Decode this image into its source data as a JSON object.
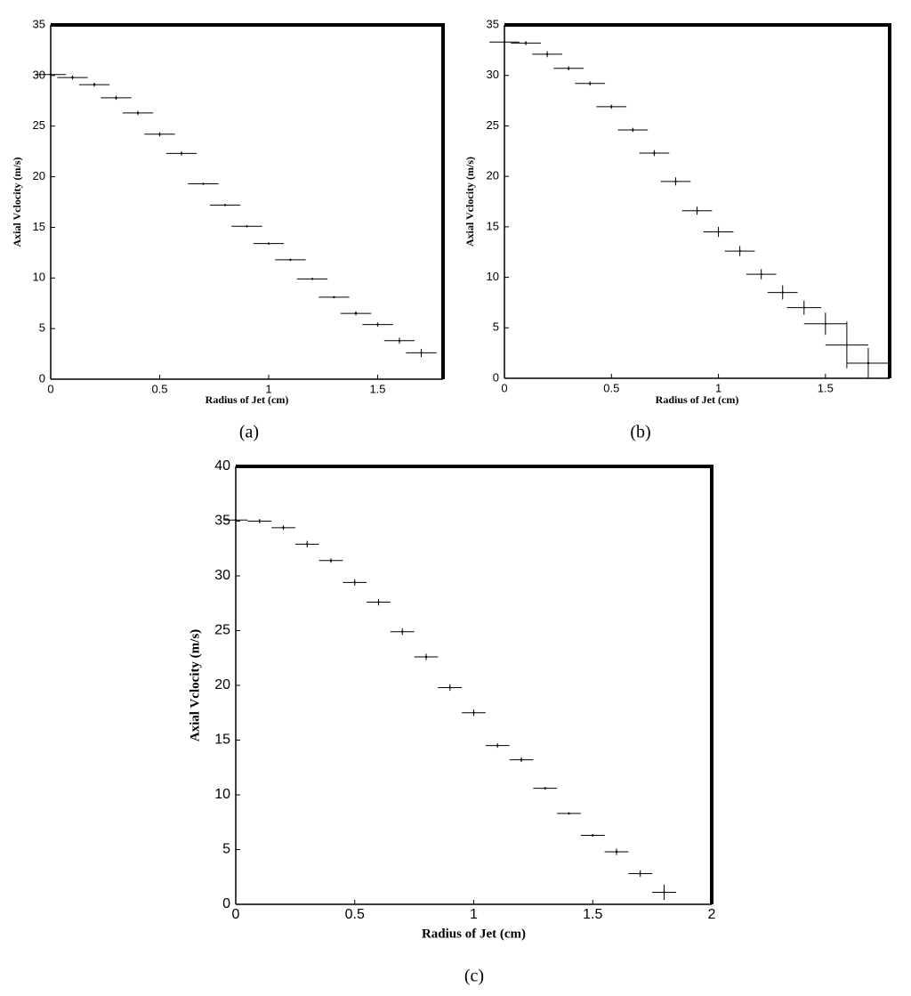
{
  "chart_data": [
    {
      "type": "errorbar",
      "caption": "(a)",
      "xlabel": "Radius of Jet (cm)",
      "ylabel": "Axial Vclocity (m/s)",
      "x": [
        0,
        0.1,
        0.2,
        0.3,
        0.4,
        0.5,
        0.6,
        0.7,
        0.8,
        0.9,
        1.0,
        1.1,
        1.2,
        1.3,
        1.4,
        1.5,
        1.6,
        1.7
      ],
      "values": [
        30.1,
        29.8,
        29.1,
        27.8,
        26.3,
        24.2,
        22.3,
        19.3,
        17.2,
        15.1,
        13.4,
        11.8,
        9.9,
        8.1,
        6.5,
        5.4,
        3.8,
        2.6
      ],
      "y_err": [
        0.2,
        0.2,
        0.2,
        0.2,
        0.2,
        0.2,
        0.2,
        0.1,
        0.1,
        0.1,
        0.1,
        0.1,
        0.1,
        0.1,
        0.2,
        0.2,
        0.3,
        0.4
      ],
      "x_err": [
        0.07,
        0.07,
        0.07,
        0.07,
        0.07,
        0.07,
        0.07,
        0.07,
        0.07,
        0.07,
        0.07,
        0.07,
        0.07,
        0.07,
        0.07,
        0.07,
        0.07,
        0.07
      ],
      "color": "#000000",
      "xlim": [
        0,
        1.8
      ],
      "ylim": [
        0,
        35
      ],
      "xticks": [
        0,
        0.5,
        1,
        1.5
      ],
      "yticks": [
        0,
        5,
        10,
        15,
        20,
        25,
        30,
        35
      ]
    },
    {
      "type": "errorbar",
      "caption": "(b)",
      "xlabel": "Radius of Jet (cm)",
      "ylabel": "Axial Vclocity (m/s)",
      "x": [
        0,
        0.1,
        0.2,
        0.3,
        0.4,
        0.5,
        0.6,
        0.7,
        0.8,
        0.9,
        1.0,
        1.1,
        1.2,
        1.3,
        1.4,
        1.5,
        1.6,
        1.7
      ],
      "values": [
        33.3,
        33.2,
        32.1,
        30.7,
        29.2,
        26.9,
        24.6,
        22.3,
        19.5,
        16.6,
        14.5,
        12.6,
        10.3,
        8.5,
        7.0,
        5.4,
        3.3,
        1.5
      ],
      "y_err": [
        0.2,
        0.2,
        0.3,
        0.2,
        0.2,
        0.2,
        0.2,
        0.3,
        0.4,
        0.4,
        0.5,
        0.5,
        0.5,
        0.7,
        0.7,
        1.1,
        2.3,
        1.5
      ],
      "x_err": [
        0.07,
        0.07,
        0.07,
        0.07,
        0.07,
        0.07,
        0.07,
        0.07,
        0.07,
        0.07,
        0.07,
        0.07,
        0.07,
        0.07,
        0.08,
        0.1,
        0.1,
        0.1
      ],
      "color": "#000000",
      "xlim": [
        0,
        1.8
      ],
      "ylim": [
        0,
        35
      ],
      "xticks": [
        0,
        0.5,
        1,
        1.5
      ],
      "yticks": [
        0,
        5,
        10,
        15,
        20,
        25,
        30,
        35
      ]
    },
    {
      "type": "errorbar",
      "caption": "(c)",
      "xlabel": "Radius of Jet (cm)",
      "ylabel": "Axial Vclocity (m/s)",
      "x": [
        0,
        0.1,
        0.2,
        0.3,
        0.4,
        0.5,
        0.6,
        0.7,
        0.8,
        0.9,
        1.0,
        1.1,
        1.2,
        1.3,
        1.4,
        1.5,
        1.6,
        1.7,
        1.8
      ],
      "values": [
        35.1,
        35.0,
        34.4,
        32.9,
        31.4,
        29.4,
        27.6,
        24.9,
        22.6,
        19.8,
        17.5,
        14.5,
        13.2,
        10.6,
        8.3,
        6.3,
        4.8,
        2.8,
        1.1
      ],
      "y_err": [
        0.2,
        0.2,
        0.2,
        0.3,
        0.2,
        0.3,
        0.3,
        0.3,
        0.3,
        0.3,
        0.3,
        0.2,
        0.2,
        0.1,
        0.1,
        0.1,
        0.3,
        0.3,
        0.7
      ],
      "x_err": [
        0.05,
        0.05,
        0.05,
        0.05,
        0.05,
        0.05,
        0.05,
        0.05,
        0.05,
        0.05,
        0.05,
        0.05,
        0.05,
        0.05,
        0.05,
        0.05,
        0.05,
        0.05,
        0.05
      ],
      "color": "#000000",
      "xlim": [
        0,
        2
      ],
      "ylim": [
        0,
        40
      ],
      "xticks": [
        0,
        0.5,
        1,
        1.5,
        2
      ],
      "yticks": [
        0,
        5,
        10,
        15,
        20,
        25,
        30,
        35,
        40
      ]
    }
  ]
}
